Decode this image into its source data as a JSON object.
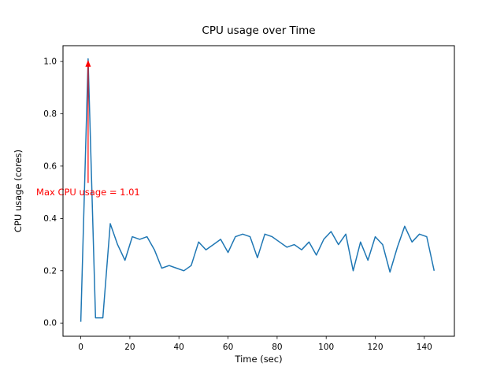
{
  "figure": {
    "background": "#ffffff"
  },
  "chart_data": {
    "type": "line",
    "title": "CPU usage over Time",
    "xlabel": "Time (sec)",
    "ylabel": "CPU usage (cores)",
    "xlim": [
      -7.25,
      152.25
    ],
    "ylim": [
      -0.0505,
      1.0605
    ],
    "xticks": [
      0,
      20,
      40,
      60,
      80,
      100,
      120,
      140
    ],
    "yticks": [
      0,
      0.2,
      0.4,
      0.6,
      0.8,
      1.0
    ],
    "grid": false,
    "legend": null,
    "series": [
      {
        "name": "cpu-usage",
        "color": "#1f77b4",
        "x": [
          0,
          3,
          6,
          9,
          12,
          15,
          18,
          21,
          24,
          27,
          30,
          33,
          36,
          39,
          42,
          45,
          48,
          51,
          54,
          57,
          60,
          63,
          66,
          69,
          72,
          75,
          78,
          81,
          84,
          87,
          90,
          93,
          96,
          99,
          102,
          105,
          108,
          111,
          114,
          117,
          120,
          123,
          126,
          129,
          132,
          135,
          138,
          141,
          144
        ],
        "y": [
          0.005,
          1.01,
          0.02,
          0.02,
          0.38,
          0.3,
          0.24,
          0.33,
          0.32,
          0.33,
          0.28,
          0.21,
          0.22,
          0.21,
          0.2,
          0.22,
          0.31,
          0.28,
          0.3,
          0.32,
          0.27,
          0.33,
          0.34,
          0.33,
          0.25,
          0.34,
          0.33,
          0.31,
          0.29,
          0.3,
          0.28,
          0.31,
          0.26,
          0.32,
          0.35,
          0.3,
          0.34,
          0.2,
          0.31,
          0.24,
          0.33,
          0.3,
          0.195,
          0.29,
          0.37,
          0.31,
          0.34,
          0.33,
          0.2
        ]
      }
    ],
    "annotation": {
      "text": "Max CPU usage = 1.01",
      "color": "#ff0000",
      "target_xy": [
        3,
        1.01
      ],
      "text_xy": [
        3,
        0.5
      ],
      "align": "center"
    }
  }
}
